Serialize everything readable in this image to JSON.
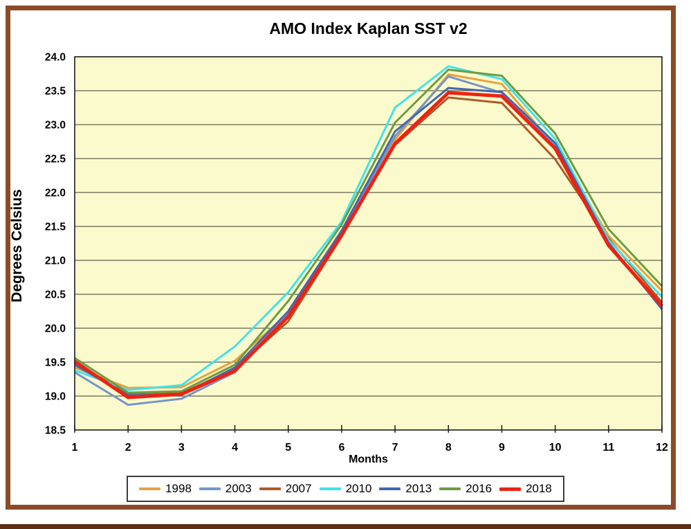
{
  "window": {
    "frame_color": "#8C4B27",
    "bottom_strip_color": "#5C2E12"
  },
  "title": "AMO Index Kaplan SST v2",
  "axes": {
    "xlabel": "Months",
    "ylabel": "Degrees Celsius",
    "x_ticks": [
      "1",
      "2",
      "3",
      "4",
      "5",
      "6",
      "7",
      "8",
      "9",
      "10",
      "11",
      "12"
    ],
    "y_ticks": [
      "24.0",
      "23.5",
      "23.0",
      "22.5",
      "22.0",
      "21.5",
      "21.0",
      "20.5",
      "20.0",
      "19.5",
      "19.0",
      "18.5"
    ]
  },
  "colors": {
    "plot_bg": "#FBFACC",
    "grid": "#60604E",
    "plot_border": "#1a1a1a",
    "text": "#000000",
    "legend_border": "#3b3b3b"
  },
  "chart_data": {
    "type": "line",
    "title": "AMO Index Kaplan SST v2",
    "xlabel": "Months",
    "ylabel": "Degrees Celsius",
    "x": [
      1,
      2,
      3,
      4,
      5,
      6,
      7,
      8,
      9,
      10,
      11,
      12
    ],
    "ylim": [
      18.5,
      24.0
    ],
    "xlim": [
      1,
      12
    ],
    "grid": true,
    "legend_position": "bottom",
    "series": [
      {
        "name": "1998",
        "color": "#E9A13B",
        "width": 3,
        "values": [
          19.42,
          19.12,
          19.13,
          19.52,
          20.22,
          21.4,
          22.78,
          23.74,
          23.6,
          22.68,
          21.36,
          20.55
        ]
      },
      {
        "name": "2003",
        "color": "#7495C8",
        "width": 3,
        "values": [
          19.35,
          18.87,
          18.96,
          19.35,
          20.22,
          21.41,
          22.83,
          23.71,
          23.47,
          22.7,
          21.24,
          20.29
        ]
      },
      {
        "name": "2007",
        "color": "#AE5A28",
        "width": 3,
        "values": [
          19.5,
          19.02,
          19.04,
          19.4,
          20.1,
          21.35,
          22.7,
          23.4,
          23.32,
          22.49,
          21.32,
          20.38
        ]
      },
      {
        "name": "2010",
        "color": "#3FE2EF",
        "width": 3,
        "values": [
          19.38,
          19.09,
          19.16,
          19.73,
          20.53,
          21.57,
          23.25,
          23.86,
          23.67,
          22.79,
          21.3,
          20.46
        ]
      },
      {
        "name": "2013",
        "color": "#4467AE",
        "width": 3,
        "values": [
          19.46,
          19.01,
          19.02,
          19.42,
          20.25,
          21.44,
          22.9,
          23.54,
          23.48,
          22.73,
          21.26,
          20.28
        ]
      },
      {
        "name": "2016",
        "color": "#6D9B42",
        "width": 3,
        "values": [
          19.56,
          19.05,
          19.07,
          19.46,
          20.4,
          21.53,
          23.03,
          23.81,
          23.72,
          22.87,
          21.46,
          20.62
        ]
      },
      {
        "name": "2018",
        "color": "#EC2213",
        "width": 5,
        "values": [
          19.51,
          18.98,
          19.03,
          19.37,
          20.17,
          21.37,
          22.72,
          23.47,
          23.42,
          22.65,
          21.22,
          20.33
        ]
      }
    ]
  }
}
